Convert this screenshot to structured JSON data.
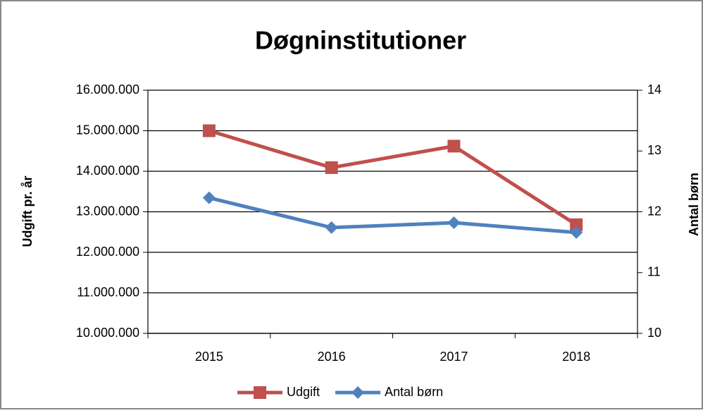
{
  "chart_data": {
    "type": "line",
    "title": "Døgninstitutioner",
    "y_label": "Udgift pr. år",
    "y2_label": "Antal børn",
    "categories": [
      "2015",
      "2016",
      "2017",
      "2018"
    ],
    "series": [
      {
        "name": "Udgift",
        "color": "#c0504d",
        "marker": "square",
        "values": [
          15000000,
          14090000,
          14620000,
          12680000
        ]
      },
      {
        "name": "Antal børn",
        "color": "#4f81bd",
        "marker": "diamond",
        "axis": "y2",
        "values": [
          12.23,
          11.74,
          11.82,
          11.66
        ]
      }
    ],
    "ylim": [
      10000000,
      16000000
    ],
    "yticks": [
      {
        "value": 10000000,
        "label": "10.000.000"
      },
      {
        "value": 11000000,
        "label": "11.000.000"
      },
      {
        "value": 12000000,
        "label": "12.000.000"
      },
      {
        "value": 13000000,
        "label": "13.000.000"
      },
      {
        "value": 14000000,
        "label": "14.000.000"
      },
      {
        "value": 15000000,
        "label": "15.000.000"
      },
      {
        "value": 16000000,
        "label": "16.000.000"
      }
    ],
    "y2lim": [
      10,
      14
    ],
    "y2ticks": [
      10,
      11,
      12,
      13,
      14
    ],
    "grid": true,
    "legend": "bottom"
  }
}
